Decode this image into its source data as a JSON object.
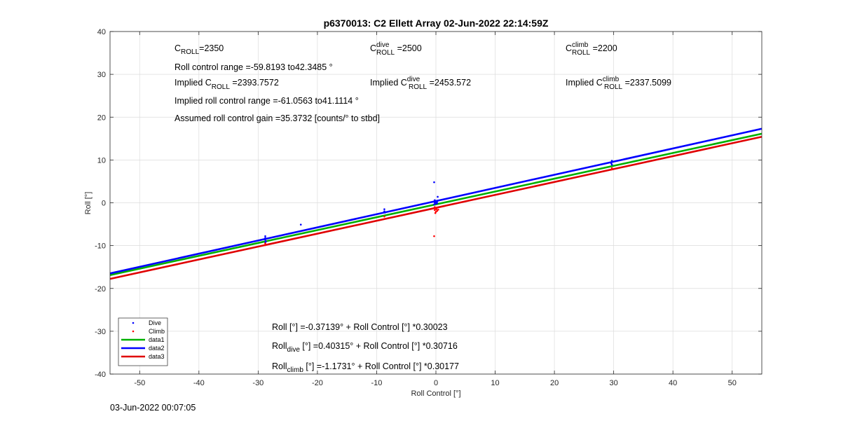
{
  "chart_data": {
    "type": "scatter",
    "title": "p6370013: C2 Ellett Array 02-Jun-2022 22:14:59Z",
    "xlabel": "Roll Control [°]",
    "ylabel": "Roll [°]",
    "xlim": [
      -55,
      55
    ],
    "ylim": [
      -40,
      40
    ],
    "xticks": [
      -50,
      -40,
      -30,
      -20,
      -10,
      0,
      10,
      20,
      30,
      40,
      50
    ],
    "yticks": [
      -40,
      -30,
      -20,
      -10,
      0,
      10,
      20,
      30,
      40
    ],
    "grid": true,
    "legend_position": "bottom-left",
    "series": [
      {
        "name": "Dive",
        "kind": "points",
        "color": "#0000ff",
        "points": [
          [
            -28.8,
            -7.8
          ],
          [
            -28.8,
            -8.2
          ],
          [
            -28.8,
            -8.6
          ],
          [
            -28.7,
            -9.0
          ],
          [
            -28.8,
            -9.3
          ],
          [
            -22.8,
            -5.1
          ],
          [
            -8.7,
            -1.5
          ],
          [
            -8.7,
            -2.0
          ],
          [
            -8.6,
            -2.3
          ],
          [
            -0.3,
            4.8
          ],
          [
            0.3,
            1.4
          ],
          [
            -0.2,
            0.6
          ],
          [
            0.0,
            0.4
          ],
          [
            0.2,
            0.3
          ],
          [
            -0.1,
            0.2
          ],
          [
            0.1,
            0.1
          ],
          [
            -0.2,
            0.0
          ],
          [
            0.2,
            -0.1
          ],
          [
            0.0,
            -0.2
          ],
          [
            -0.3,
            -0.4
          ],
          [
            0.3,
            0.5
          ],
          [
            29.7,
            9.8
          ],
          [
            29.7,
            9.5
          ],
          [
            29.6,
            9.2
          ],
          [
            29.7,
            8.9
          ]
        ]
      },
      {
        "name": "Climb",
        "kind": "points",
        "color": "#ff0000",
        "points": [
          [
            -28.8,
            -9.5
          ],
          [
            -28.8,
            -9.9
          ],
          [
            -8.7,
            -3.2
          ],
          [
            -0.3,
            -7.8
          ],
          [
            -0.2,
            -1.0
          ],
          [
            0.0,
            -1.2
          ],
          [
            -0.1,
            -1.4
          ],
          [
            0.1,
            -1.5
          ],
          [
            -0.2,
            -1.7
          ],
          [
            0.2,
            -1.9
          ],
          [
            0.0,
            -2.1
          ],
          [
            -0.1,
            -2.4
          ],
          [
            0.4,
            -1.6
          ],
          [
            29.7,
            7.8
          ],
          [
            29.7,
            8.1
          ]
        ]
      },
      {
        "name": "data1",
        "kind": "line",
        "color": "#00b000",
        "intercept": -0.37139,
        "slope": 0.30023
      },
      {
        "name": "data2",
        "kind": "line",
        "color": "#0000ff",
        "intercept": 0.40315,
        "slope": 0.30716
      },
      {
        "name": "data3",
        "kind": "line",
        "color": "#e00000",
        "intercept": -1.1731,
        "slope": 0.30177
      }
    ]
  },
  "annotations": {
    "c_roll": {
      "base": "C",
      "sub": "ROLL",
      "value": "=2350"
    },
    "roll_range": "Roll control range =-59.8193 to42.3485 °",
    "implied_c_roll": {
      "prefix": "Implied C",
      "sub": "ROLL",
      "value": " =2393.7572"
    },
    "implied_range": "Implied roll control range =-61.0563 to41.1114 °",
    "gain": "Assumed roll control gain =35.3732 [counts/° to stbd]",
    "c_roll_dive": {
      "base": "C",
      "sup": "dive",
      "sub": "ROLL",
      "value": " =2500"
    },
    "implied_dive": {
      "prefix": "Implied C",
      "sup": "dive",
      "sub": "ROLL",
      "value": " =2453.572"
    },
    "c_roll_climb": {
      "base": "C",
      "sup": "climb",
      "sub": "ROLL",
      "value": " =2200"
    },
    "implied_climb": {
      "prefix": "Implied C",
      "sup": "climb",
      "sub": "ROLL",
      "value": " =2337.5099"
    },
    "fit_all": "Roll [°] =-0.37139° + Roll Control [°] *0.30023",
    "fit_dive": {
      "base": "Roll",
      "sub": "dive",
      "rest": " [°] =0.40315° + Roll Control [°] *0.30716"
    },
    "fit_climb": {
      "base": "Roll",
      "sub": "climb",
      "rest": " [°] =-1.1731° + Roll Control [°] *0.30177"
    }
  },
  "footer_timestamp": "03-Jun-2022 00:07:05"
}
